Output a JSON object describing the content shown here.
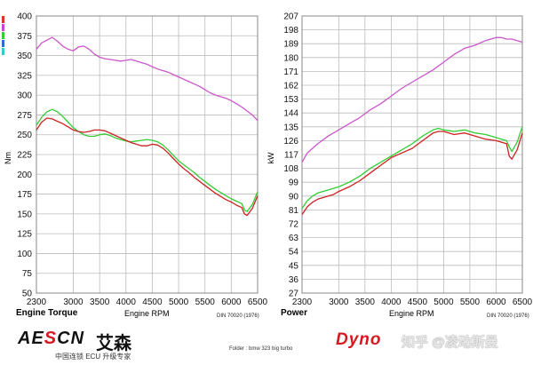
{
  "chart_data": [
    {
      "type": "line",
      "caption": "Engine Torque",
      "xlabel": "Engine RPM",
      "ylabel": "Nm",
      "din": "DIN 70020 (1976)",
      "xlim": [
        2300,
        6500
      ],
      "ylim": [
        50,
        400
      ],
      "x_ticks": [
        "2300",
        "3000",
        "3500",
        "4000",
        "4500",
        "5000",
        "5500",
        "6000",
        "6500"
      ],
      "y_ticks": [
        "400",
        "375",
        "350",
        "325",
        "300",
        "275",
        "250",
        "225",
        "200",
        "175",
        "150",
        "125",
        "100",
        "75",
        "50"
      ],
      "x_tick_values": [
        2300,
        3000,
        3500,
        4000,
        4500,
        5000,
        5500,
        6000,
        6500
      ],
      "y_tick_values": [
        400,
        375,
        350,
        325,
        300,
        275,
        250,
        225,
        200,
        175,
        150,
        125,
        100,
        75,
        50
      ],
      "series": [
        {
          "color": "#cc55cc",
          "x": [
            2300,
            2400,
            2600,
            2700,
            2800,
            2900,
            3000,
            3100,
            3200,
            3300,
            3400,
            3500,
            3600,
            3700,
            3800,
            3900,
            4000,
            4100,
            4200,
            4300,
            4400,
            4500,
            4600,
            4700,
            4800,
            4900,
            5000,
            5100,
            5200,
            5300,
            5400,
            5500,
            5600,
            5700,
            5800,
            5900,
            6000,
            6100,
            6200,
            6300,
            6400,
            6500
          ],
          "y": [
            358,
            366,
            373,
            368,
            362,
            358,
            356,
            361,
            362,
            358,
            352,
            348,
            346,
            345,
            344,
            343,
            344,
            345,
            343,
            341,
            339,
            336,
            333,
            331,
            329,
            326,
            323,
            320,
            317,
            314,
            311,
            307,
            303,
            300,
            298,
            296,
            293,
            289,
            285,
            280,
            275,
            268
          ]
        },
        {
          "color": "#33cc33",
          "x": [
            2300,
            2400,
            2500,
            2600,
            2700,
            2800,
            2900,
            3000,
            3100,
            3200,
            3300,
            3400,
            3500,
            3600,
            3700,
            3800,
            3900,
            4000,
            4100,
            4200,
            4300,
            4400,
            4500,
            4600,
            4700,
            4800,
            4900,
            5000,
            5100,
            5200,
            5300,
            5400,
            5500,
            5600,
            5700,
            5800,
            5900,
            6000,
            6100,
            6200,
            6250,
            6300,
            6400,
            6500
          ],
          "y": [
            262,
            272,
            279,
            282,
            279,
            273,
            266,
            259,
            254,
            250,
            248,
            248,
            250,
            251,
            249,
            246,
            244,
            242,
            241,
            242,
            243,
            244,
            243,
            241,
            237,
            231,
            224,
            217,
            212,
            207,
            202,
            196,
            191,
            186,
            181,
            177,
            173,
            169,
            166,
            163,
            155,
            153,
            162,
            178
          ]
        },
        {
          "color": "#cc2222",
          "x": [
            2300,
            2400,
            2500,
            2600,
            2700,
            2800,
            2900,
            3000,
            3100,
            3200,
            3300,
            3400,
            3500,
            3600,
            3700,
            3800,
            3900,
            4000,
            4100,
            4200,
            4300,
            4400,
            4500,
            4600,
            4700,
            4800,
            4900,
            5000,
            5100,
            5200,
            5300,
            5400,
            5500,
            5600,
            5700,
            5800,
            5900,
            6000,
            6100,
            6200,
            6250,
            6300,
            6400,
            6500
          ],
          "y": [
            256,
            266,
            271,
            270,
            267,
            264,
            260,
            256,
            254,
            253,
            254,
            256,
            256,
            255,
            252,
            249,
            246,
            243,
            240,
            238,
            236,
            236,
            238,
            237,
            233,
            227,
            220,
            213,
            207,
            202,
            196,
            191,
            186,
            181,
            176,
            172,
            168,
            165,
            161,
            158,
            150,
            148,
            157,
            173
          ]
        }
      ]
    },
    {
      "type": "line",
      "caption": "Power",
      "xlabel": "Engine RPM",
      "ylabel": "kW",
      "din": "DIN 70020 (1976)",
      "xlim": [
        2300,
        6500
      ],
      "ylim": [
        27,
        207
      ],
      "x_ticks": [
        "2300",
        "3000",
        "3500",
        "4000",
        "4500",
        "5000",
        "5500",
        "6000",
        "6500"
      ],
      "y_ticks": [
        "207",
        "198",
        "189",
        "180",
        "171",
        "162",
        "153",
        "144",
        "135",
        "126",
        "117",
        "108",
        "99",
        "90",
        "81",
        "72",
        "63",
        "54",
        "45",
        "36",
        "27"
      ],
      "x_tick_values": [
        2300,
        3000,
        3500,
        4000,
        4500,
        5000,
        5500,
        6000,
        6500
      ],
      "y_tick_values": [
        207,
        198,
        189,
        180,
        171,
        162,
        153,
        144,
        135,
        126,
        117,
        108,
        99,
        90,
        81,
        72,
        63,
        54,
        45,
        36,
        27
      ],
      "series": [
        {
          "color": "#cc55cc",
          "x": [
            2300,
            2400,
            2600,
            2800,
            3000,
            3200,
            3400,
            3600,
            3800,
            4000,
            4200,
            4400,
            4600,
            4800,
            5000,
            5200,
            5400,
            5600,
            5800,
            5900,
            6000,
            6100,
            6200,
            6300,
            6400,
            6500
          ],
          "y": [
            112,
            118,
            124,
            129,
            133,
            137,
            141,
            146,
            150,
            155,
            160,
            164,
            168,
            172,
            177,
            182,
            186,
            188,
            191,
            192,
            193,
            193,
            192,
            192,
            191,
            190
          ]
        },
        {
          "color": "#33cc33",
          "x": [
            2300,
            2400,
            2500,
            2600,
            2700,
            2800,
            2900,
            3000,
            3200,
            3400,
            3600,
            3800,
            4000,
            4200,
            4400,
            4600,
            4800,
            4900,
            5000,
            5200,
            5400,
            5600,
            5800,
            6000,
            6100,
            6200,
            6250,
            6300,
            6400,
            6500
          ],
          "y": [
            82,
            87,
            90,
            92,
            93,
            94,
            95,
            96,
            99,
            103,
            108,
            112,
            116,
            120,
            124,
            129,
            133,
            134,
            133,
            132,
            133,
            131,
            130,
            128,
            127,
            126,
            122,
            119,
            125,
            135
          ]
        },
        {
          "color": "#cc2222",
          "x": [
            2300,
            2400,
            2500,
            2600,
            2700,
            2800,
            2900,
            3000,
            3200,
            3400,
            3600,
            3800,
            4000,
            4200,
            4400,
            4600,
            4800,
            4900,
            5000,
            5200,
            5400,
            5600,
            5800,
            6000,
            6100,
            6200,
            6250,
            6300,
            6400,
            6500
          ],
          "y": [
            78,
            83,
            86,
            88,
            89,
            90,
            91,
            93,
            96,
            100,
            105,
            110,
            115,
            118,
            121,
            126,
            131,
            132,
            132,
            130,
            131,
            129,
            127,
            126,
            125,
            124,
            116,
            114,
            120,
            131
          ]
        }
      ]
    }
  ],
  "footer": {
    "aescn_logo_a": "AE",
    "aescn_logo_b": "S",
    "aescn_logo_c": "CN",
    "aescn_cn": "艾森",
    "aescn_tag": "中国连锁 ECU 升级专家",
    "folder": "Folder : bmw 323 big turbo",
    "dyno_logo": "Dyno",
    "zhihu": "知乎 @凌动斯曼"
  },
  "swatches": [
    "#dd3333",
    "#cc44cc",
    "#33cc33",
    "#3366dd",
    "#33cccc"
  ]
}
